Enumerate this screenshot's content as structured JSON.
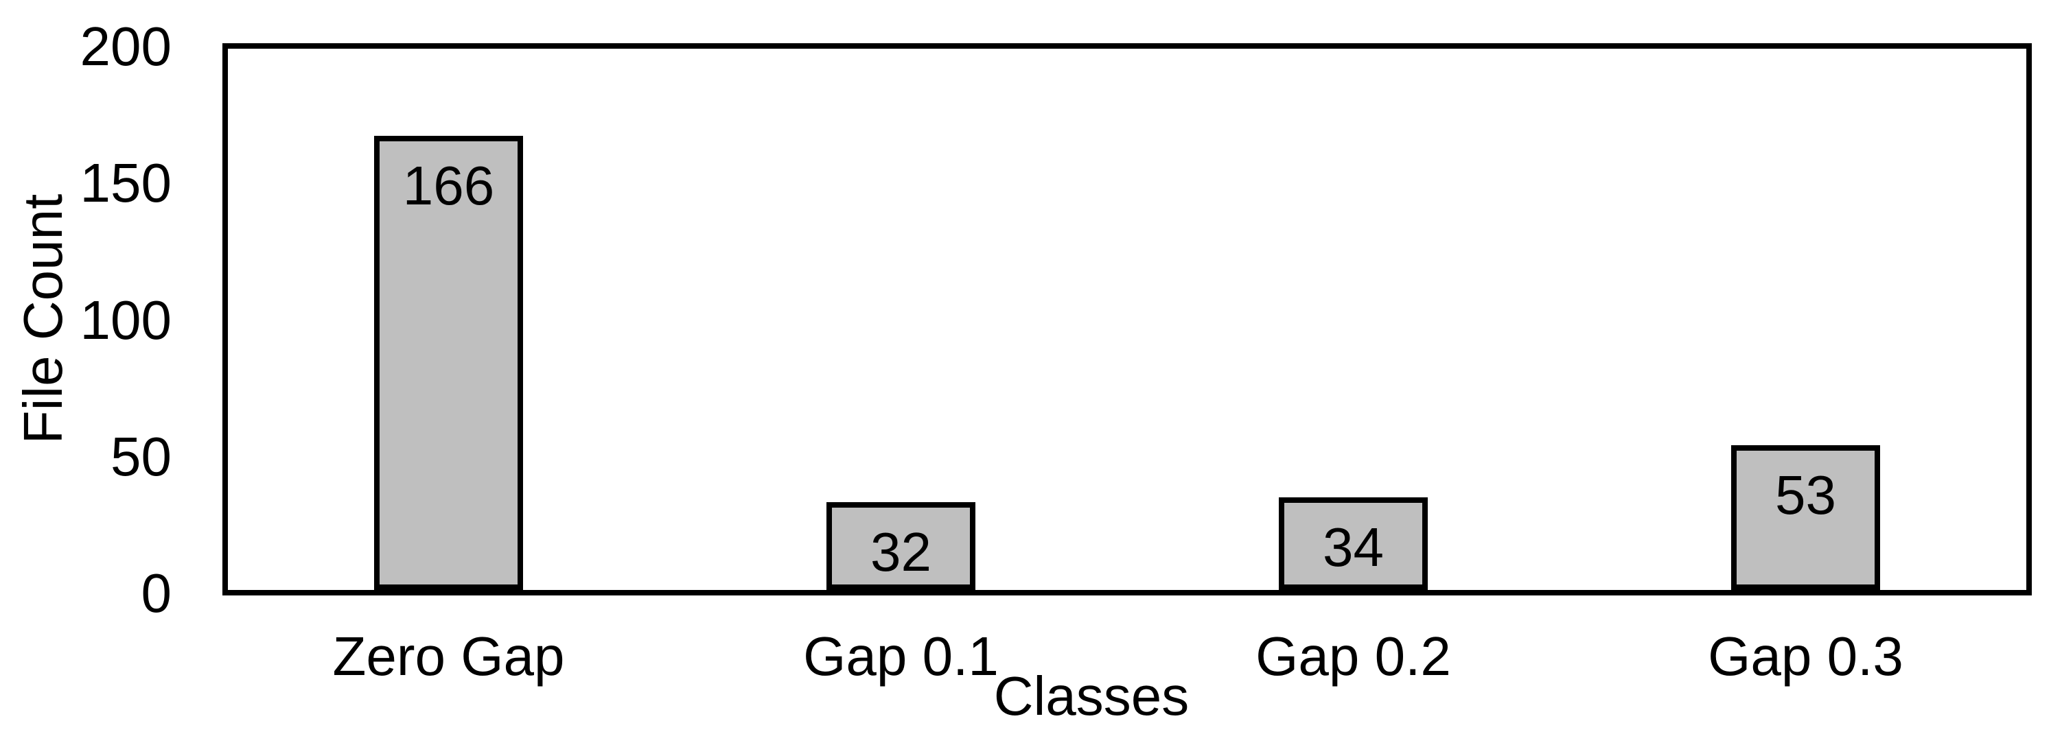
{
  "chart_data": {
    "type": "bar",
    "title": "",
    "xlabel": "Classes",
    "ylabel": "File Count",
    "categories": [
      "Zero Gap",
      "Gap 0.1",
      "Gap 0.2",
      "Gap 0.3"
    ],
    "values": [
      166,
      32,
      34,
      53
    ],
    "data_labels": [
      "166",
      "32",
      "34",
      "53"
    ],
    "data_label_position": "inside-end",
    "ylim": [
      0,
      200
    ],
    "yticks": [
      0,
      50,
      100,
      150,
      200
    ],
    "grid": false,
    "legend": "none",
    "colors": {
      "bar_fill": "#BFBFBF",
      "bar_border": "#000000",
      "axis_line": "#000000",
      "text": "#000000",
      "background": "#FFFFFF"
    }
  }
}
